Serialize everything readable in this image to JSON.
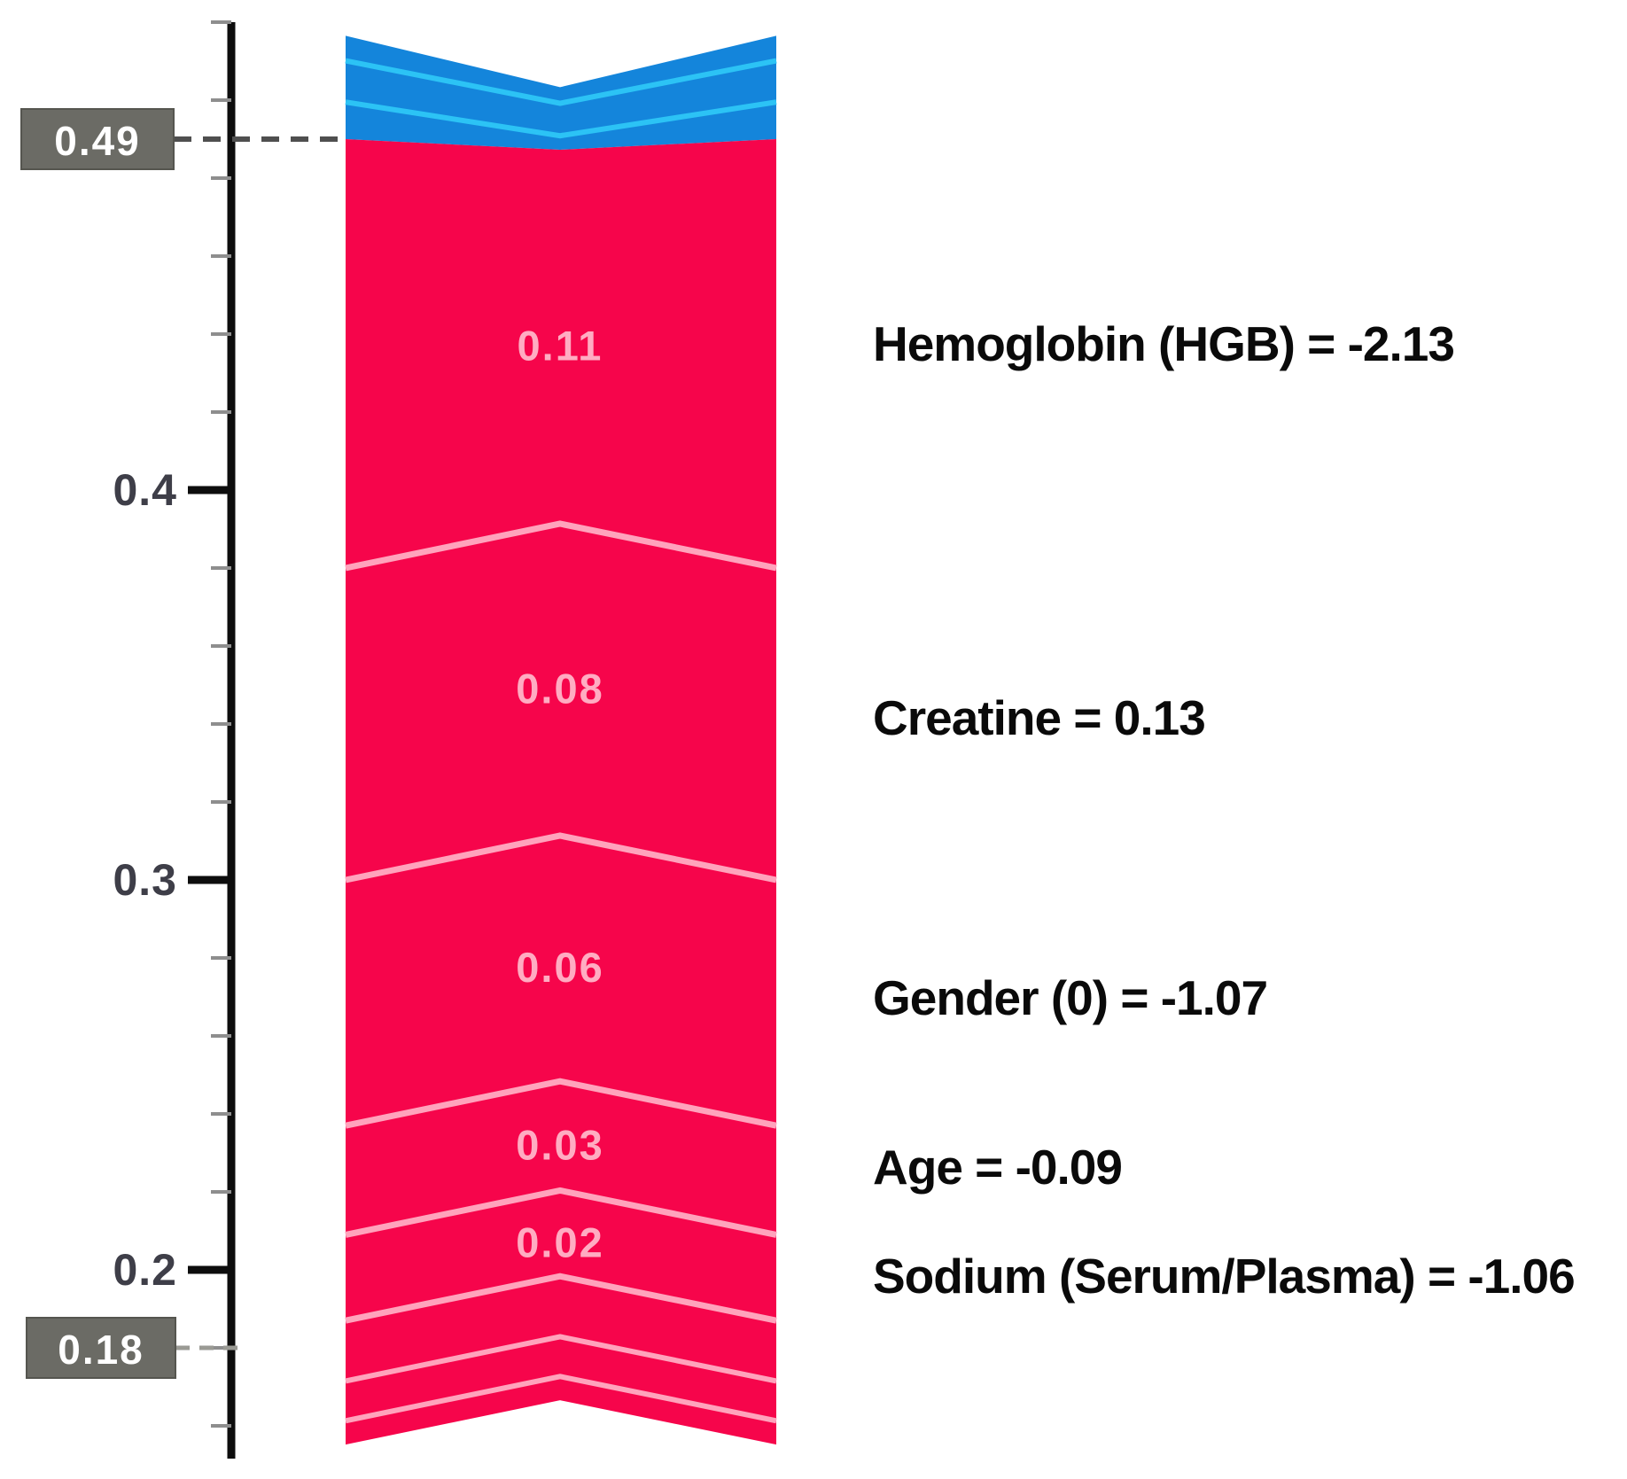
{
  "chart_data": {
    "type": "bar",
    "variant": "shap-force-plot-vertical",
    "title": "",
    "axis": {
      "orientation": "vertical",
      "major_tick_labels": [
        "0.4",
        "0.3",
        "0.2"
      ],
      "major_tick_values": [
        0.4,
        0.3,
        0.2
      ],
      "minor_tick_step": 0.02,
      "minor_tick_top": 0.52,
      "minor_tick_bottom": 0.16,
      "grid": false
    },
    "boxed_values": [
      {
        "text": "0.49",
        "value": 0.49
      },
      {
        "text": "0.18",
        "value": 0.18
      }
    ],
    "red_segments": [
      {
        "label": "0.11",
        "value": 0.11
      },
      {
        "label": "0.08",
        "value": 0.08
      },
      {
        "label": "0.06",
        "value": 0.063
      },
      {
        "label": "0.03",
        "value": 0.028
      },
      {
        "label": "0.02",
        "value": 0.022
      },
      {
        "label": "",
        "value": 0.0155
      },
      {
        "label": "",
        "value": 0.0102
      },
      {
        "label": "",
        "value": 0.0061
      }
    ],
    "blue_segments": [
      {
        "label": "",
        "value": 0.0064
      },
      {
        "label": "",
        "value": 0.0106
      },
      {
        "label": "",
        "value": 0.0095
      }
    ],
    "features": [
      {
        "text": "Hemoglobin (HGB) = -2.13"
      },
      {
        "text": "Creatine = 0.13"
      },
      {
        "text": "Gender (0) = -1.07"
      },
      {
        "text": "Age = -0.09"
      },
      {
        "text": "Sodium (Serum/Plasma) = -1.06"
      }
    ],
    "colors": {
      "red": "#F6054B",
      "red_divider": "#FFA3BC",
      "red_label": "#FFACC2",
      "blue": "#1485DB",
      "blue_divider": "#2CC3F5",
      "marker_box": "#6B6B65",
      "marker_box_border": "#55554F",
      "marker_text": "#FFFFFF",
      "axis": "#0D0D0D",
      "minor_tick": "#8E8E8E",
      "tick_label": "#3E3E48",
      "feature_text": "#0A0A0A",
      "dash_dark": "#4F4F4F",
      "dash_light": "#9A9A94",
      "background": "#FFFFFF"
    }
  }
}
